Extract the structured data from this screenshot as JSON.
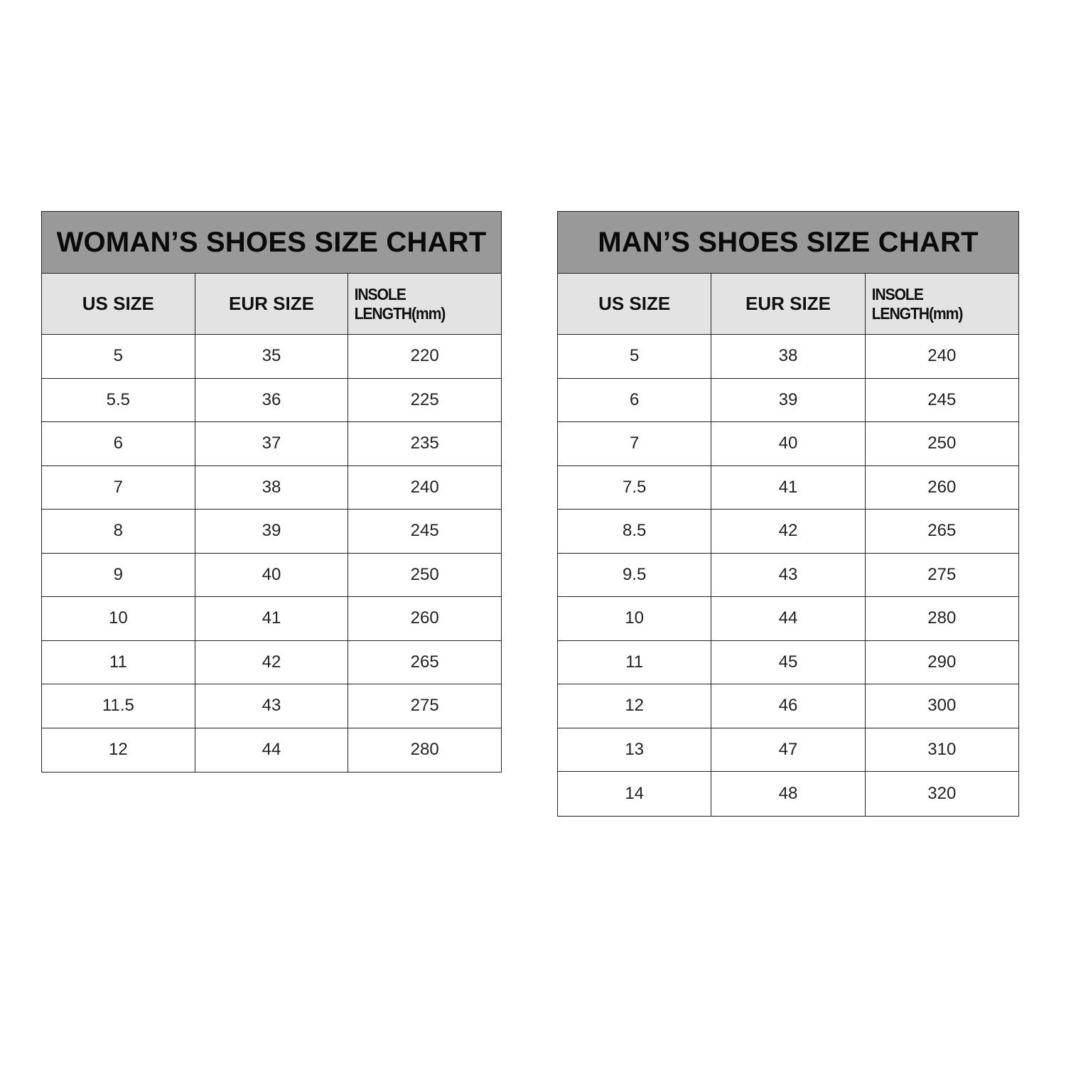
{
  "women": {
    "title": "WOMAN’S SHOES SIZE CHART",
    "headers": [
      "US SIZE",
      "EUR SIZE",
      "INSOLE LENGTH(mm)"
    ],
    "rows": [
      [
        "5",
        "35",
        "220"
      ],
      [
        "5.5",
        "36",
        "225"
      ],
      [
        "6",
        "37",
        "235"
      ],
      [
        "7",
        "38",
        "240"
      ],
      [
        "8",
        "39",
        "245"
      ],
      [
        "9",
        "40",
        "250"
      ],
      [
        "10",
        "41",
        "260"
      ],
      [
        "11",
        "42",
        "265"
      ],
      [
        "11.5",
        "43",
        "275"
      ],
      [
        "12",
        "44",
        "280"
      ]
    ]
  },
  "men": {
    "title": "MAN’S SHOES SIZE CHART",
    "headers": [
      "US SIZE",
      "EUR SIZE",
      "INSOLE LENGTH(mm)"
    ],
    "rows": [
      [
        "5",
        "38",
        "240"
      ],
      [
        "6",
        "39",
        "245"
      ],
      [
        "7",
        "40",
        "250"
      ],
      [
        "7.5",
        "41",
        "260"
      ],
      [
        "8.5",
        "42",
        "265"
      ],
      [
        "9.5",
        "43",
        "275"
      ],
      [
        "10",
        "44",
        "280"
      ],
      [
        "11",
        "45",
        "290"
      ],
      [
        "12",
        "46",
        "300"
      ],
      [
        "13",
        "47",
        "310"
      ],
      [
        "14",
        "48",
        "320"
      ]
    ]
  },
  "colors": {
    "title_bg": "#999999",
    "header_bg": "#e3e3e3",
    "border": "#222222"
  }
}
